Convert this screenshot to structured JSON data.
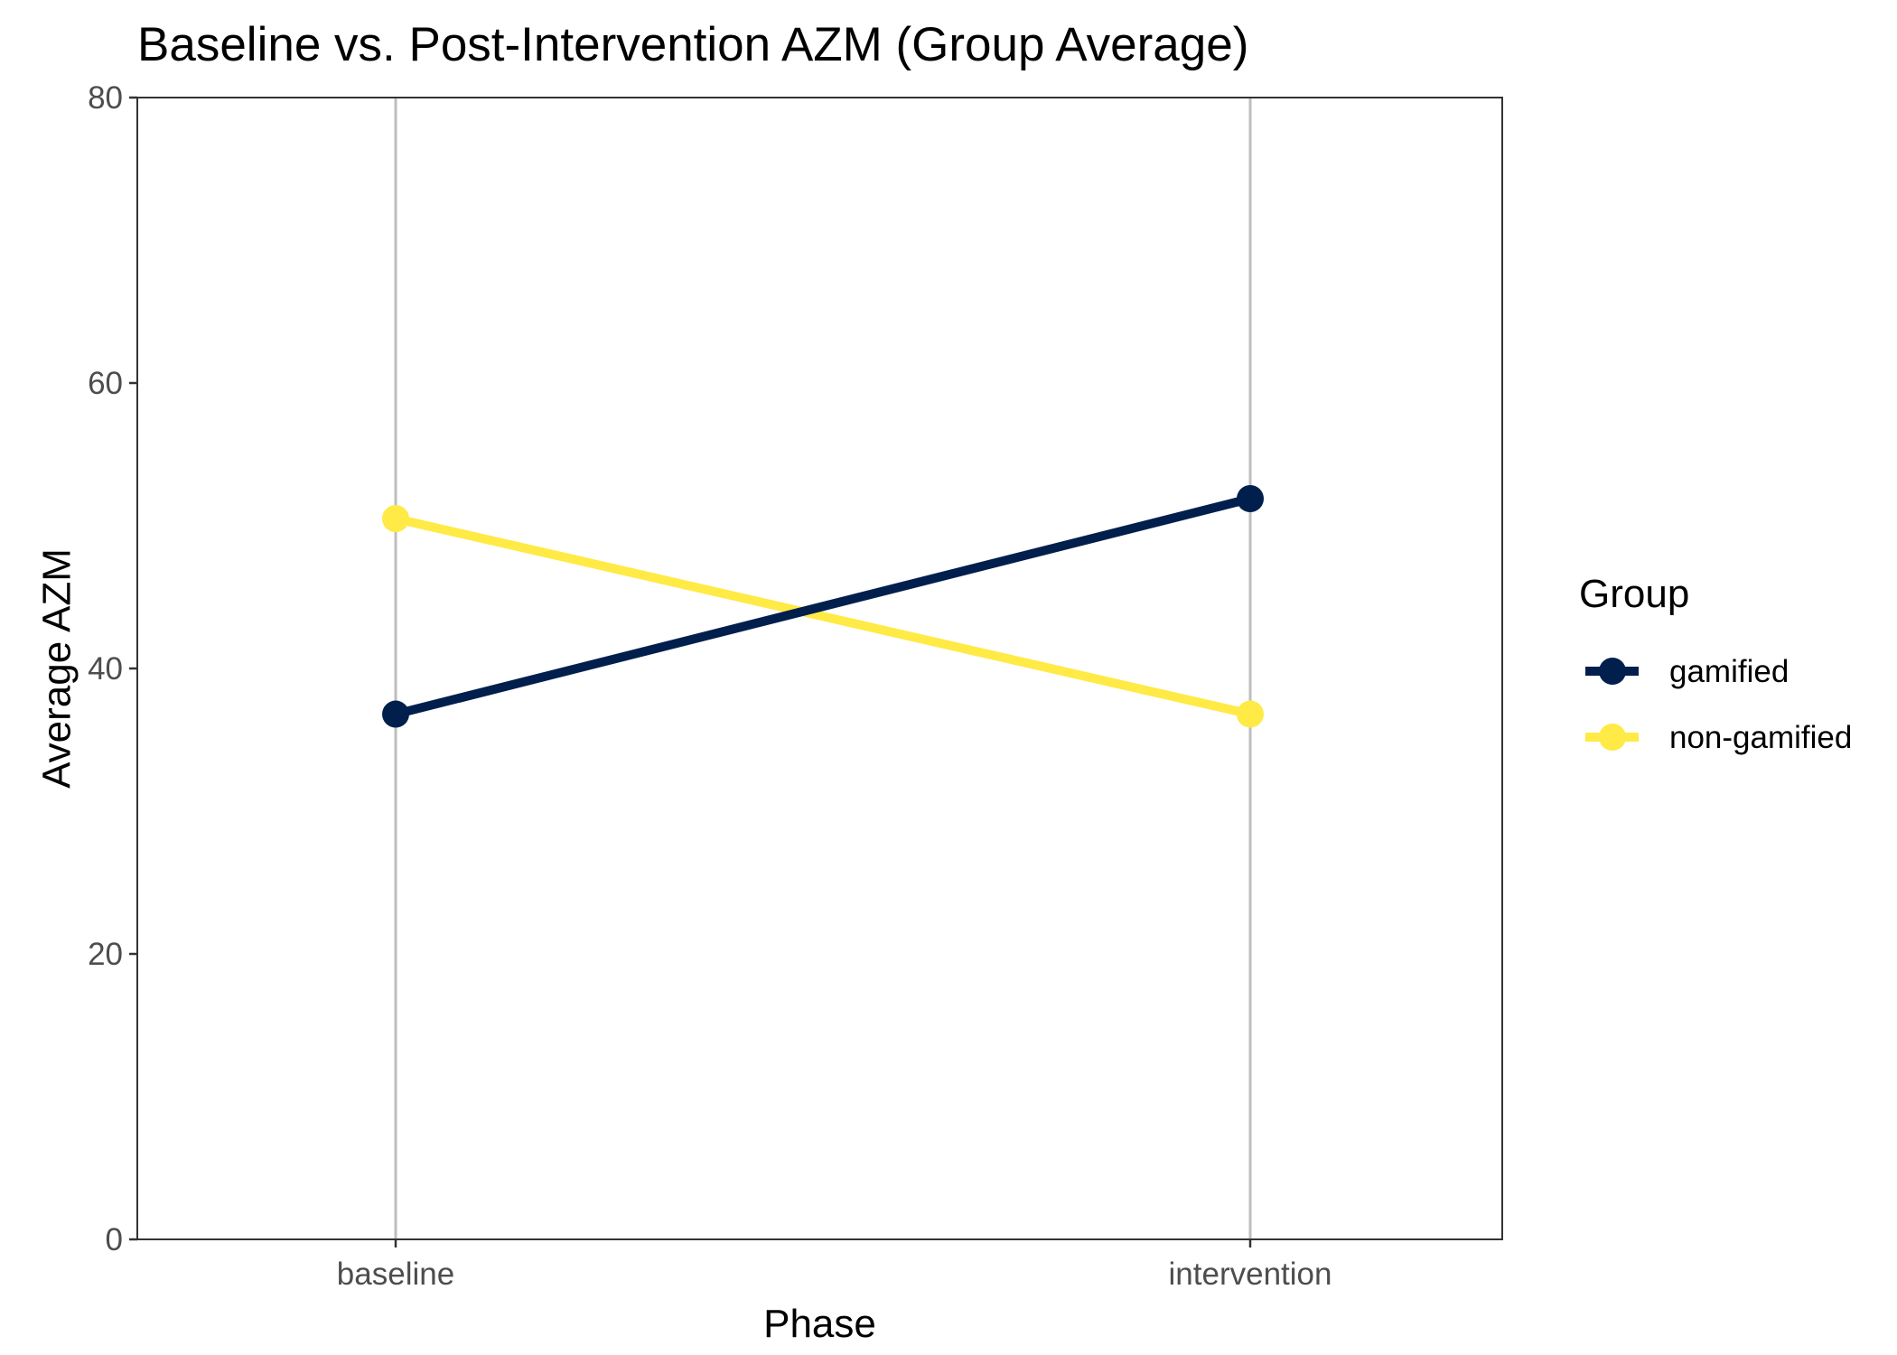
{
  "chart_data": {
    "type": "line",
    "title": "Baseline vs. Post-Intervention AZM (Group Average)",
    "xlabel": "Phase",
    "ylabel": "Average AZM",
    "categories": [
      "baseline",
      "intervention"
    ],
    "ylim": [
      0,
      80
    ],
    "yticks": [
      0,
      20,
      40,
      60,
      80
    ],
    "grid": "vertical major lines at categories",
    "legend": {
      "title": "Group",
      "placement": "right"
    },
    "series": [
      {
        "name": "gamified",
        "values": [
          36.8,
          51.9
        ],
        "color": "#001f4d"
      },
      {
        "name": "non-gamified",
        "values": [
          50.5,
          36.8
        ],
        "color": "#ffea46"
      }
    ]
  }
}
